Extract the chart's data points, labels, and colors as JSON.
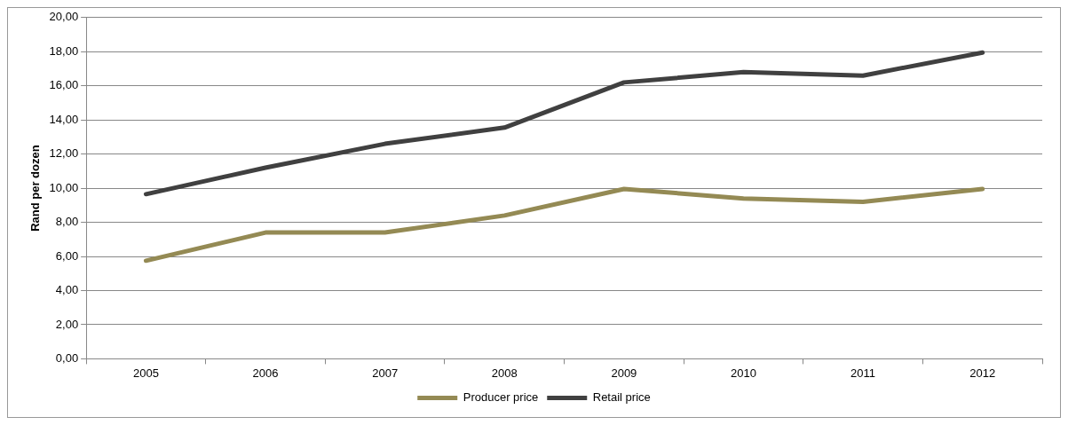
{
  "chart_data": {
    "type": "line",
    "ylabel": "Rand per dozen",
    "categories": [
      "2005",
      "2006",
      "2007",
      "2008",
      "2009",
      "2010",
      "2011",
      "2012"
    ],
    "series": [
      {
        "name": "Producer price",
        "color": "#948a54",
        "values": [
          5.75,
          7.4,
          7.4,
          8.4,
          9.95,
          9.4,
          9.2,
          9.95
        ]
      },
      {
        "name": "Retail price",
        "color": "#404040",
        "values": [
          9.65,
          11.2,
          12.6,
          13.55,
          16.2,
          16.8,
          16.6,
          17.95
        ]
      }
    ],
    "ylim": [
      0,
      20
    ],
    "yticks": [
      {
        "value": 0,
        "label": "0,00"
      },
      {
        "value": 2,
        "label": "2,00"
      },
      {
        "value": 4,
        "label": "4,00"
      },
      {
        "value": 6,
        "label": "6,00"
      },
      {
        "value": 8,
        "label": "8,00"
      },
      {
        "value": 10,
        "label": "10,00"
      },
      {
        "value": 12,
        "label": "12,00"
      },
      {
        "value": 14,
        "label": "14,00"
      },
      {
        "value": 16,
        "label": "16,00"
      },
      {
        "value": 18,
        "label": "18,00"
      },
      {
        "value": 20,
        "label": "20,00"
      }
    ],
    "grid": "y",
    "legend": "bottom",
    "marker": "none",
    "line_style": "solid"
  }
}
